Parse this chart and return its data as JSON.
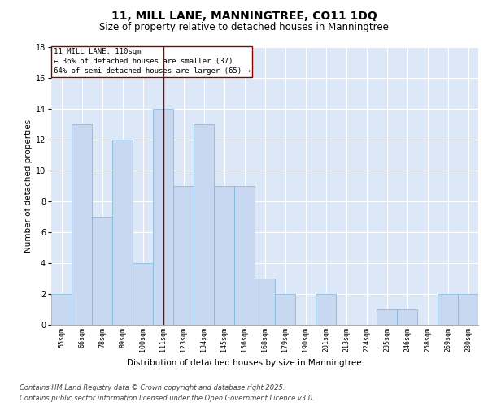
{
  "title_line1": "11, MILL LANE, MANNINGTREE, CO11 1DQ",
  "title_line2": "Size of property relative to detached houses in Manningtree",
  "xlabel": "Distribution of detached houses by size in Manningtree",
  "ylabel": "Number of detached properties",
  "categories": [
    "55sqm",
    "66sqm",
    "78sqm",
    "89sqm",
    "100sqm",
    "111sqm",
    "123sqm",
    "134sqm",
    "145sqm",
    "156sqm",
    "168sqm",
    "179sqm",
    "190sqm",
    "201sqm",
    "213sqm",
    "224sqm",
    "235sqm",
    "246sqm",
    "258sqm",
    "269sqm",
    "280sqm"
  ],
  "values": [
    2,
    13,
    7,
    12,
    4,
    14,
    9,
    13,
    9,
    9,
    3,
    2,
    0,
    2,
    0,
    0,
    1,
    1,
    0,
    2,
    2
  ],
  "bar_color": "#c8d8f0",
  "bar_edgecolor": "#7ab4d8",
  "highlight_index": 5,
  "highlight_line_color": "#8b0000",
  "annotation_text": "11 MILL LANE: 110sqm\n← 36% of detached houses are smaller (37)\n64% of semi-detached houses are larger (65) →",
  "annotation_box_color": "#ffffff",
  "annotation_box_edgecolor": "#8b0000",
  "ylim": [
    0,
    18
  ],
  "yticks": [
    0,
    2,
    4,
    6,
    8,
    10,
    12,
    14,
    16,
    18
  ],
  "background_color": "#dce8f8",
  "grid_color": "#ffffff",
  "fig_background": "#ffffff",
  "footer_line1": "Contains HM Land Registry data © Crown copyright and database right 2025.",
  "footer_line2": "Contains public sector information licensed under the Open Government Licence v3.0.",
  "title_fontsize": 10,
  "subtitle_fontsize": 8.5,
  "annotation_fontsize": 6.5,
  "footer_fontsize": 6,
  "xlabel_fontsize": 7.5,
  "ylabel_fontsize": 7.5
}
